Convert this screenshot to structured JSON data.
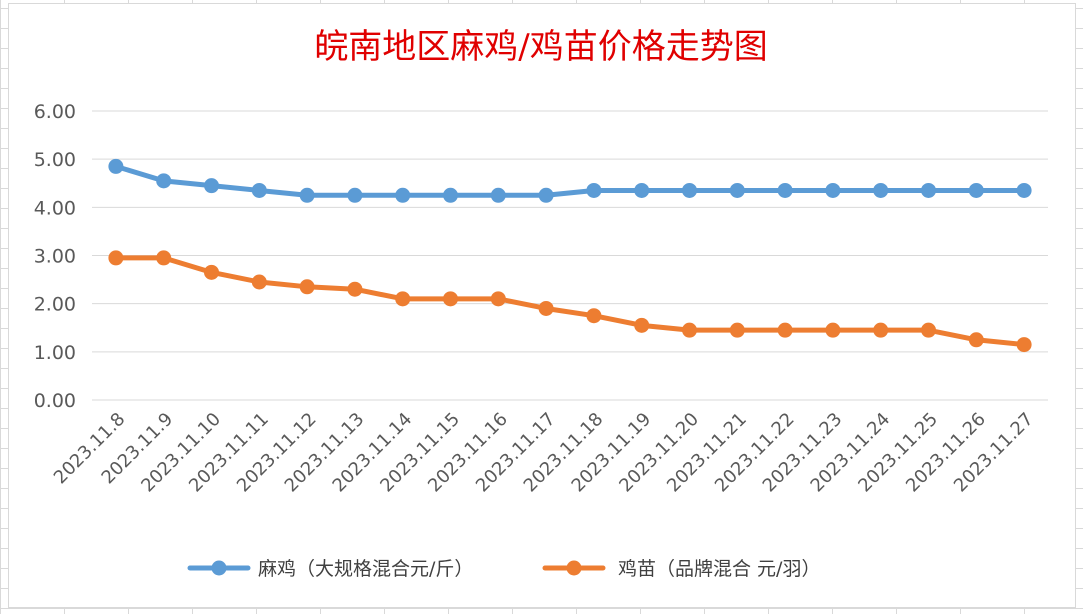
{
  "chart_data": {
    "type": "line",
    "title": "皖南地区麻鸡/鸡苗价格走势图",
    "xlabel": "",
    "ylabel": "",
    "ylim": [
      0,
      6
    ],
    "yticks": [
      "0.00",
      "1.00",
      "2.00",
      "3.00",
      "4.00",
      "5.00",
      "6.00"
    ],
    "grid": true,
    "legend_position": "bottom",
    "categories": [
      "2023.11.8",
      "2023.11.9",
      "2023.11.10",
      "2023.11.11",
      "2023.11.12",
      "2023.11.13",
      "2023.11.14",
      "2023.11.15",
      "2023.11.16",
      "2023.11.17",
      "2023.11.18",
      "2023.11.19",
      "2023.11.20",
      "2023.11.21",
      "2023.11.22",
      "2023.11.23",
      "2023.11.24",
      "2023.11.25",
      "2023.11.26",
      "2023.11.27"
    ],
    "series": [
      {
        "name": "麻鸡（大规格混合元/斤）",
        "color": "#5b9bd5",
        "values": [
          4.85,
          4.55,
          4.45,
          4.35,
          4.25,
          4.25,
          4.25,
          4.25,
          4.25,
          4.25,
          4.35,
          4.35,
          4.35,
          4.35,
          4.35,
          4.35,
          4.35,
          4.35,
          4.35,
          4.35
        ]
      },
      {
        "name": "鸡苗（品牌混合 元/羽）",
        "color": "#ed7d31",
        "values": [
          2.95,
          2.95,
          2.65,
          2.45,
          2.35,
          2.3,
          2.1,
          2.1,
          2.1,
          1.9,
          1.75,
          1.55,
          1.45,
          1.45,
          1.45,
          1.45,
          1.45,
          1.45,
          1.25,
          1.15
        ]
      }
    ]
  }
}
